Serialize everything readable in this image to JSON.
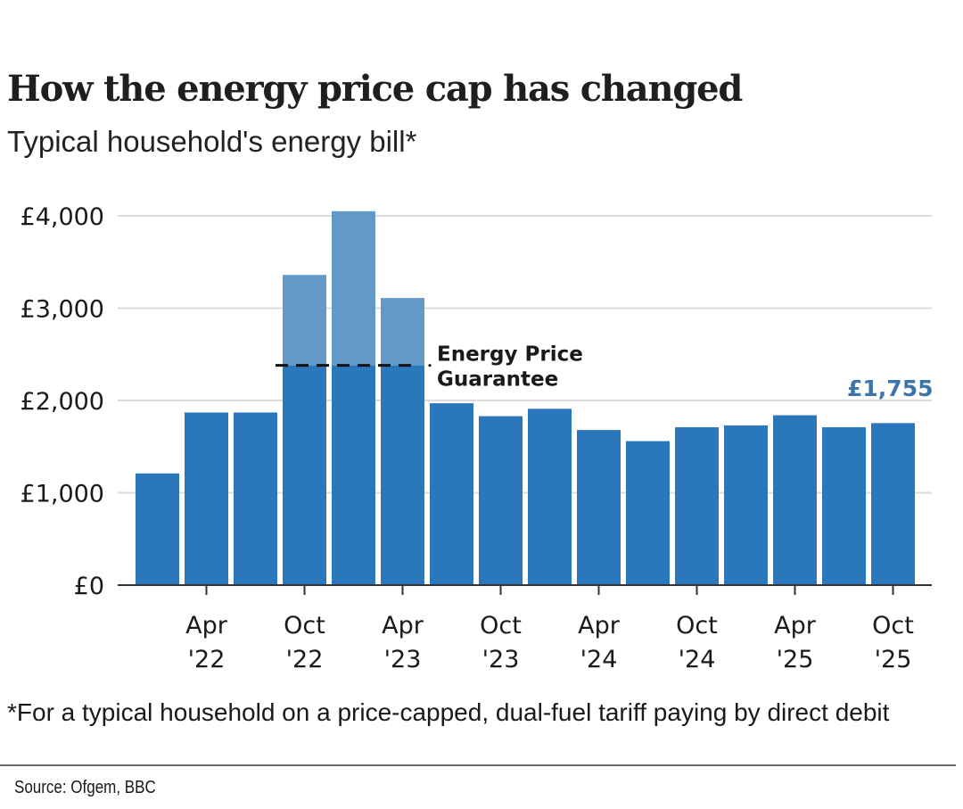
{
  "header": {
    "title": "How the energy price cap has changed",
    "subtitle": "Typical household's energy bill*"
  },
  "footer": {
    "footnote": "*For a typical household on a price-capped, dual-fuel tariff paying by direct debit",
    "source": "Source: Ofgem, BBC"
  },
  "colors": {
    "bar": "#2a78bb",
    "bar_above_guarantee": "#6399c6",
    "highlight_label": "#3d75a8",
    "gridline": "#dcdcdc",
    "axis": "#333333"
  },
  "chart_data": {
    "type": "bar",
    "title": "How the energy price cap has changed",
    "subtitle": "Typical household's energy bill*",
    "xlabel": "",
    "ylabel": "",
    "ylim": [
      0,
      4000
    ],
    "yticks": [
      0,
      1000,
      2000,
      3000,
      4000
    ],
    "ytick_labels": [
      "£0",
      "£1,000",
      "£2,000",
      "£3,000",
      "£4,000"
    ],
    "grid": true,
    "categories": [
      "Jan '22",
      "Apr '22",
      "Jul '22",
      "Oct '22",
      "Jan '23",
      "Apr '23",
      "Jul '23",
      "Oct '23",
      "Jan '24",
      "Apr '24",
      "Jul '24",
      "Oct '24",
      "Jan '25",
      "Apr '25",
      "Jul '25",
      "Oct '25"
    ],
    "xtick_labels": [
      {
        "category": "Apr '22",
        "line1": "Apr",
        "line2": "'22"
      },
      {
        "category": "Oct '22",
        "line1": "Oct",
        "line2": "'22"
      },
      {
        "category": "Apr '23",
        "line1": "Apr",
        "line2": "'23"
      },
      {
        "category": "Oct '23",
        "line1": "Oct",
        "line2": "'23"
      },
      {
        "category": "Apr '24",
        "line1": "Apr",
        "line2": "'24"
      },
      {
        "category": "Oct '24",
        "line1": "Oct",
        "line2": "'24"
      },
      {
        "category": "Apr '25",
        "line1": "Apr",
        "line2": "'25"
      },
      {
        "category": "Oct '25",
        "line1": "Oct",
        "line2": "'25"
      }
    ],
    "values": [
      1210,
      1870,
      1870,
      3360,
      4050,
      3110,
      1970,
      1830,
      1910,
      1680,
      1560,
      1710,
      1730,
      1840,
      1710,
      1755
    ],
    "energy_price_guarantee": {
      "label_line1": "Energy Price",
      "label_line2": "Guarantee",
      "value": 2380,
      "applies_to": [
        "Oct '22",
        "Jan '23",
        "Apr '23"
      ]
    },
    "end_label": {
      "category": "Oct '25",
      "text": "£1,755"
    }
  }
}
